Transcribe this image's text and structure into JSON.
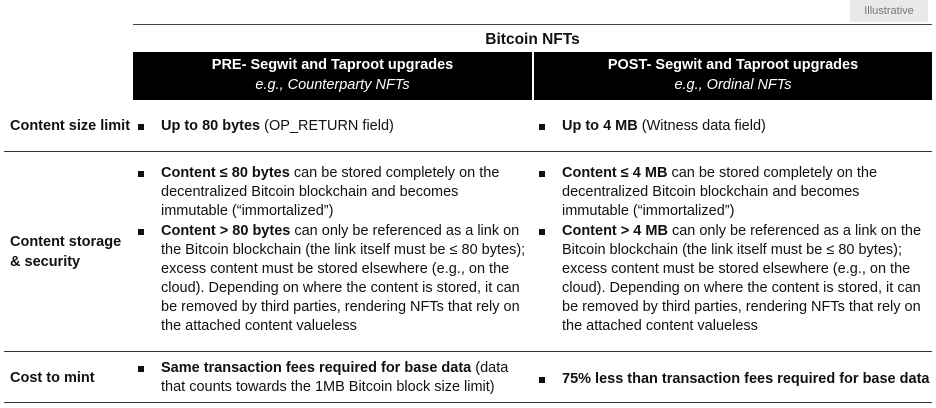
{
  "tag": "Illustrative",
  "title": "Bitcoin NFTs",
  "columns": {
    "pre": {
      "heading": "PRE- Segwit and Taproot upgrades",
      "example": "e.g., Counterparty NFTs"
    },
    "post": {
      "heading": "POST- Segwit and Taproot upgrades",
      "example": "e.g., Ordinal NFTs"
    }
  },
  "rows": {
    "size": {
      "label": "Content size limit",
      "pre": {
        "bold": "Up to 80 bytes",
        "rest": " (OP_RETURN field)"
      },
      "post": {
        "bold": "Up to 4 MB",
        "rest": " (Witness data field)"
      }
    },
    "storage": {
      "label_line1": "Content storage",
      "label_line2": "& security",
      "pre": [
        {
          "bold": "Content ≤ 80 bytes",
          "rest": " can be stored completely on the decentralized Bitcoin blockchain and becomes immutable (“immortalized”)"
        },
        {
          "bold": "Content > 80 bytes",
          "rest": " can only be referenced as a link on the Bitcoin blockchain (the link itself must be ≤ 80 bytes); excess content must be stored elsewhere (e.g., on the cloud). Depending on where the content is stored, it can be removed by third parties, rendering NFTs that rely on the attached content valueless"
        }
      ],
      "post": [
        {
          "bold": "Content ≤ 4 MB",
          "rest": " can be stored completely on the decentralized Bitcoin blockchain and becomes immutable (“immortalized”)"
        },
        {
          "bold": "Content > 4 MB",
          "rest": " can only be referenced as a link on the Bitcoin blockchain (the link itself must be ≤ 80 bytes); excess content must be stored elsewhere (e.g., on the cloud). Depending on where the content is stored, it can be removed by third parties, rendering NFTs that rely on the attached content valueless"
        }
      ]
    },
    "cost": {
      "label": "Cost to mint",
      "pre": {
        "bold": "Same transaction fees required for base data",
        "rest": " (data that counts towards the 1MB Bitcoin block size limit)"
      },
      "post": {
        "bold": "75% less than transaction fees required for base data",
        "rest": ""
      }
    }
  }
}
